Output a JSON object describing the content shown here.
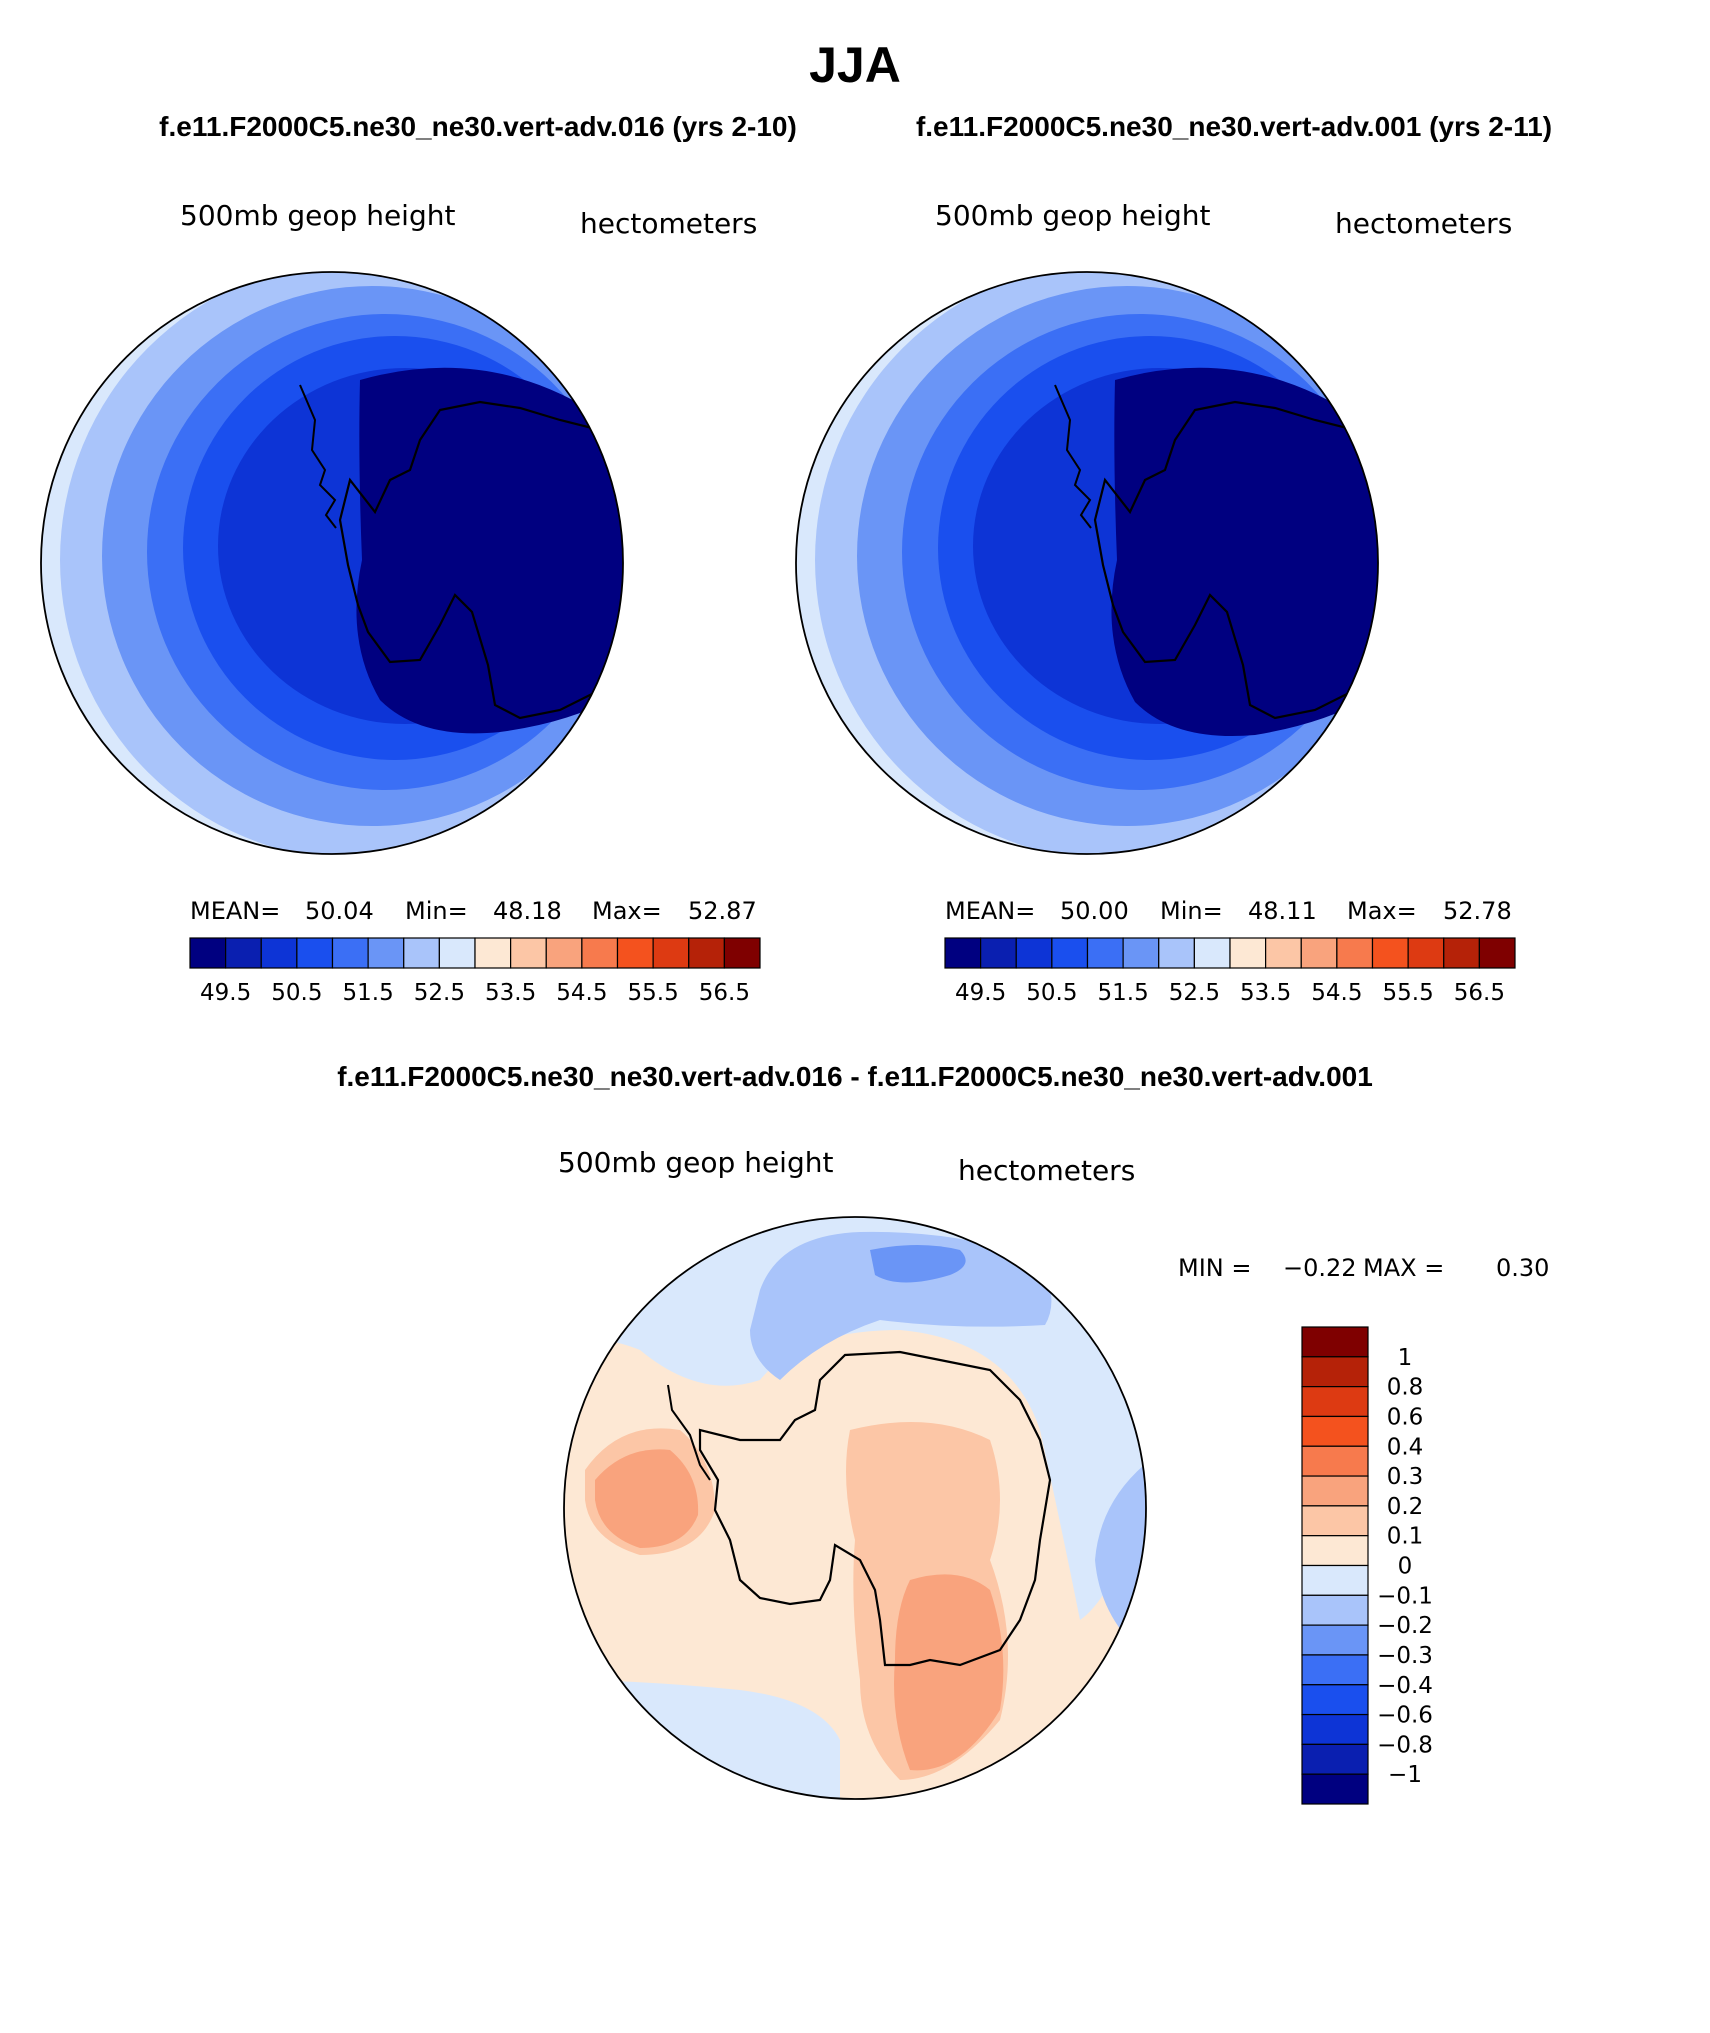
{
  "figure": {
    "season": "JJA",
    "case_titles": [
      "f.e11.F2000C5.ne30_ne30.vert-adv.016 (yrs 2-10)",
      "f.e11.F2000C5.ne30_ne30.vert-adv.001 (yrs 2-11)"
    ],
    "diff_title": "f.e11.F2000C5.ne30_ne30.vert-adv.016 - f.e11.F2000C5.ne30_ne30.vert-adv.001"
  },
  "panels": [
    {
      "variable": "500mb geop height",
      "units": "hectometers",
      "mean_label": "MEAN=",
      "mean": "50.04",
      "min_label": "Min=",
      "min": "48.18",
      "max_label": "Max=",
      "max": "52.87"
    },
    {
      "variable": "500mb geop height",
      "units": "hectometers",
      "mean_label": "MEAN=",
      "mean": "50.00",
      "min_label": "Min=",
      "min": "48.11",
      "max_label": "Max=",
      "max": "52.78"
    }
  ],
  "diff_panel": {
    "variable": "500mb geop height",
    "units": "hectometers",
    "min_label": "MIN =",
    "min": "−0.22",
    "max_label": "MAX =",
    "max": "0.30"
  },
  "chart_data": [
    {
      "type": "heatmap",
      "projection": "south-polar-stereographic",
      "variable": "500mb geop height",
      "units": "hectometers",
      "mean": 50.04,
      "min": 48.18,
      "max": 52.87,
      "levels": [
        49,
        49.5,
        50,
        50.5,
        51,
        51.5,
        52,
        52.5,
        53,
        53.5,
        54,
        54.5,
        55,
        55.5,
        56,
        56.5
      ],
      "colorbar_labels": [
        "49.5",
        "50.5",
        "51.5",
        "52.5",
        "53.5",
        "54.5",
        "55.5",
        "56.5"
      ],
      "colors": [
        "#000080",
        "#0a1fb0",
        "#0d34d6",
        "#1a4fee",
        "#3b6ff5",
        "#6a95f6",
        "#a9c4fa",
        "#d9e8fc",
        "#fde8d4",
        "#fcc6a6",
        "#f9a37d",
        "#f77a4d",
        "#f4521e",
        "#dd3a12",
        "#b52208",
        "#7f0000"
      ]
    },
    {
      "type": "heatmap",
      "projection": "south-polar-stereographic",
      "variable": "500mb geop height",
      "units": "hectometers",
      "mean": 50.0,
      "min": 48.11,
      "max": 52.78,
      "levels": [
        49,
        49.5,
        50,
        50.5,
        51,
        51.5,
        52,
        52.5,
        53,
        53.5,
        54,
        54.5,
        55,
        55.5,
        56,
        56.5
      ],
      "colorbar_labels": [
        "49.5",
        "50.5",
        "51.5",
        "52.5",
        "53.5",
        "54.5",
        "55.5",
        "56.5"
      ],
      "colors": [
        "#000080",
        "#0a1fb0",
        "#0d34d6",
        "#1a4fee",
        "#3b6ff5",
        "#6a95f6",
        "#a9c4fa",
        "#d9e8fc",
        "#fde8d4",
        "#fcc6a6",
        "#f9a37d",
        "#f77a4d",
        "#f4521e",
        "#dd3a12",
        "#b52208",
        "#7f0000"
      ]
    },
    {
      "type": "heatmap",
      "projection": "south-polar-stereographic",
      "variable": "500mb geop height",
      "units": "hectometers",
      "min": -0.22,
      "max": 0.3,
      "levels": [
        1,
        0.8,
        0.6,
        0.4,
        0.3,
        0.2,
        0.1,
        0,
        -0.1,
        -0.2,
        -0.3,
        -0.4,
        -0.6,
        -0.8,
        -1
      ],
      "colorbar_labels": [
        "1",
        "0.8",
        "0.6",
        "0.4",
        "0.3",
        "0.2",
        "0.1",
        "0",
        "−0.1",
        "−0.2",
        "−0.3",
        "−0.4",
        "−0.6",
        "−0.8",
        "−1"
      ],
      "colors": [
        "#7f0000",
        "#b52208",
        "#dd3a12",
        "#f4521e",
        "#f77a4d",
        "#f9a37d",
        "#fcc6a6",
        "#fde8d4",
        "#d9e8fc",
        "#a9c4fa",
        "#6a95f6",
        "#3b6ff5",
        "#1a4fee",
        "#0d34d6",
        "#0a1fb0",
        "#000080"
      ]
    }
  ]
}
